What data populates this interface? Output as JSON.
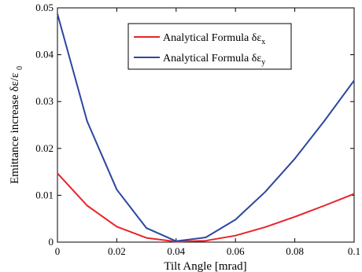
{
  "chart_data": {
    "type": "line",
    "xlabel": "Tilt Angle [mrad]",
    "ylabel_prefix": "Emittance increase",
    "ylabel_symbol": "δε/ε",
    "ylabel_subscript": "0",
    "xlim": [
      0,
      0.1
    ],
    "ylim": [
      0,
      0.05
    ],
    "x_ticks": [
      "0",
      "0.02",
      "0.04",
      "0.06",
      "0.08",
      "0.1"
    ],
    "y_ticks": [
      "0",
      "0.01",
      "0.02",
      "0.03",
      "0.04",
      "0.05"
    ],
    "grid": false,
    "legend_position": "top-right",
    "x": [
      0,
      0.01,
      0.02,
      0.03,
      0.04,
      0.05,
      0.06,
      0.07,
      0.08,
      0.09,
      0.1
    ],
    "series": [
      {
        "name": "Analytical Formula δε",
        "subscript": "x",
        "color": "#e8242a",
        "values": [
          0.0147,
          0.0078,
          0.0033,
          0.0009,
          0.0001,
          0.0003,
          0.0014,
          0.0032,
          0.0054,
          0.0078,
          0.0103
        ]
      },
      {
        "name": "Analytical Formula δε",
        "subscript": "y",
        "color": "#2d47a0",
        "values": [
          0.0487,
          0.0258,
          0.0112,
          0.003,
          0.0002,
          0.001,
          0.0048,
          0.0107,
          0.0178,
          0.0259,
          0.0345
        ]
      }
    ]
  }
}
